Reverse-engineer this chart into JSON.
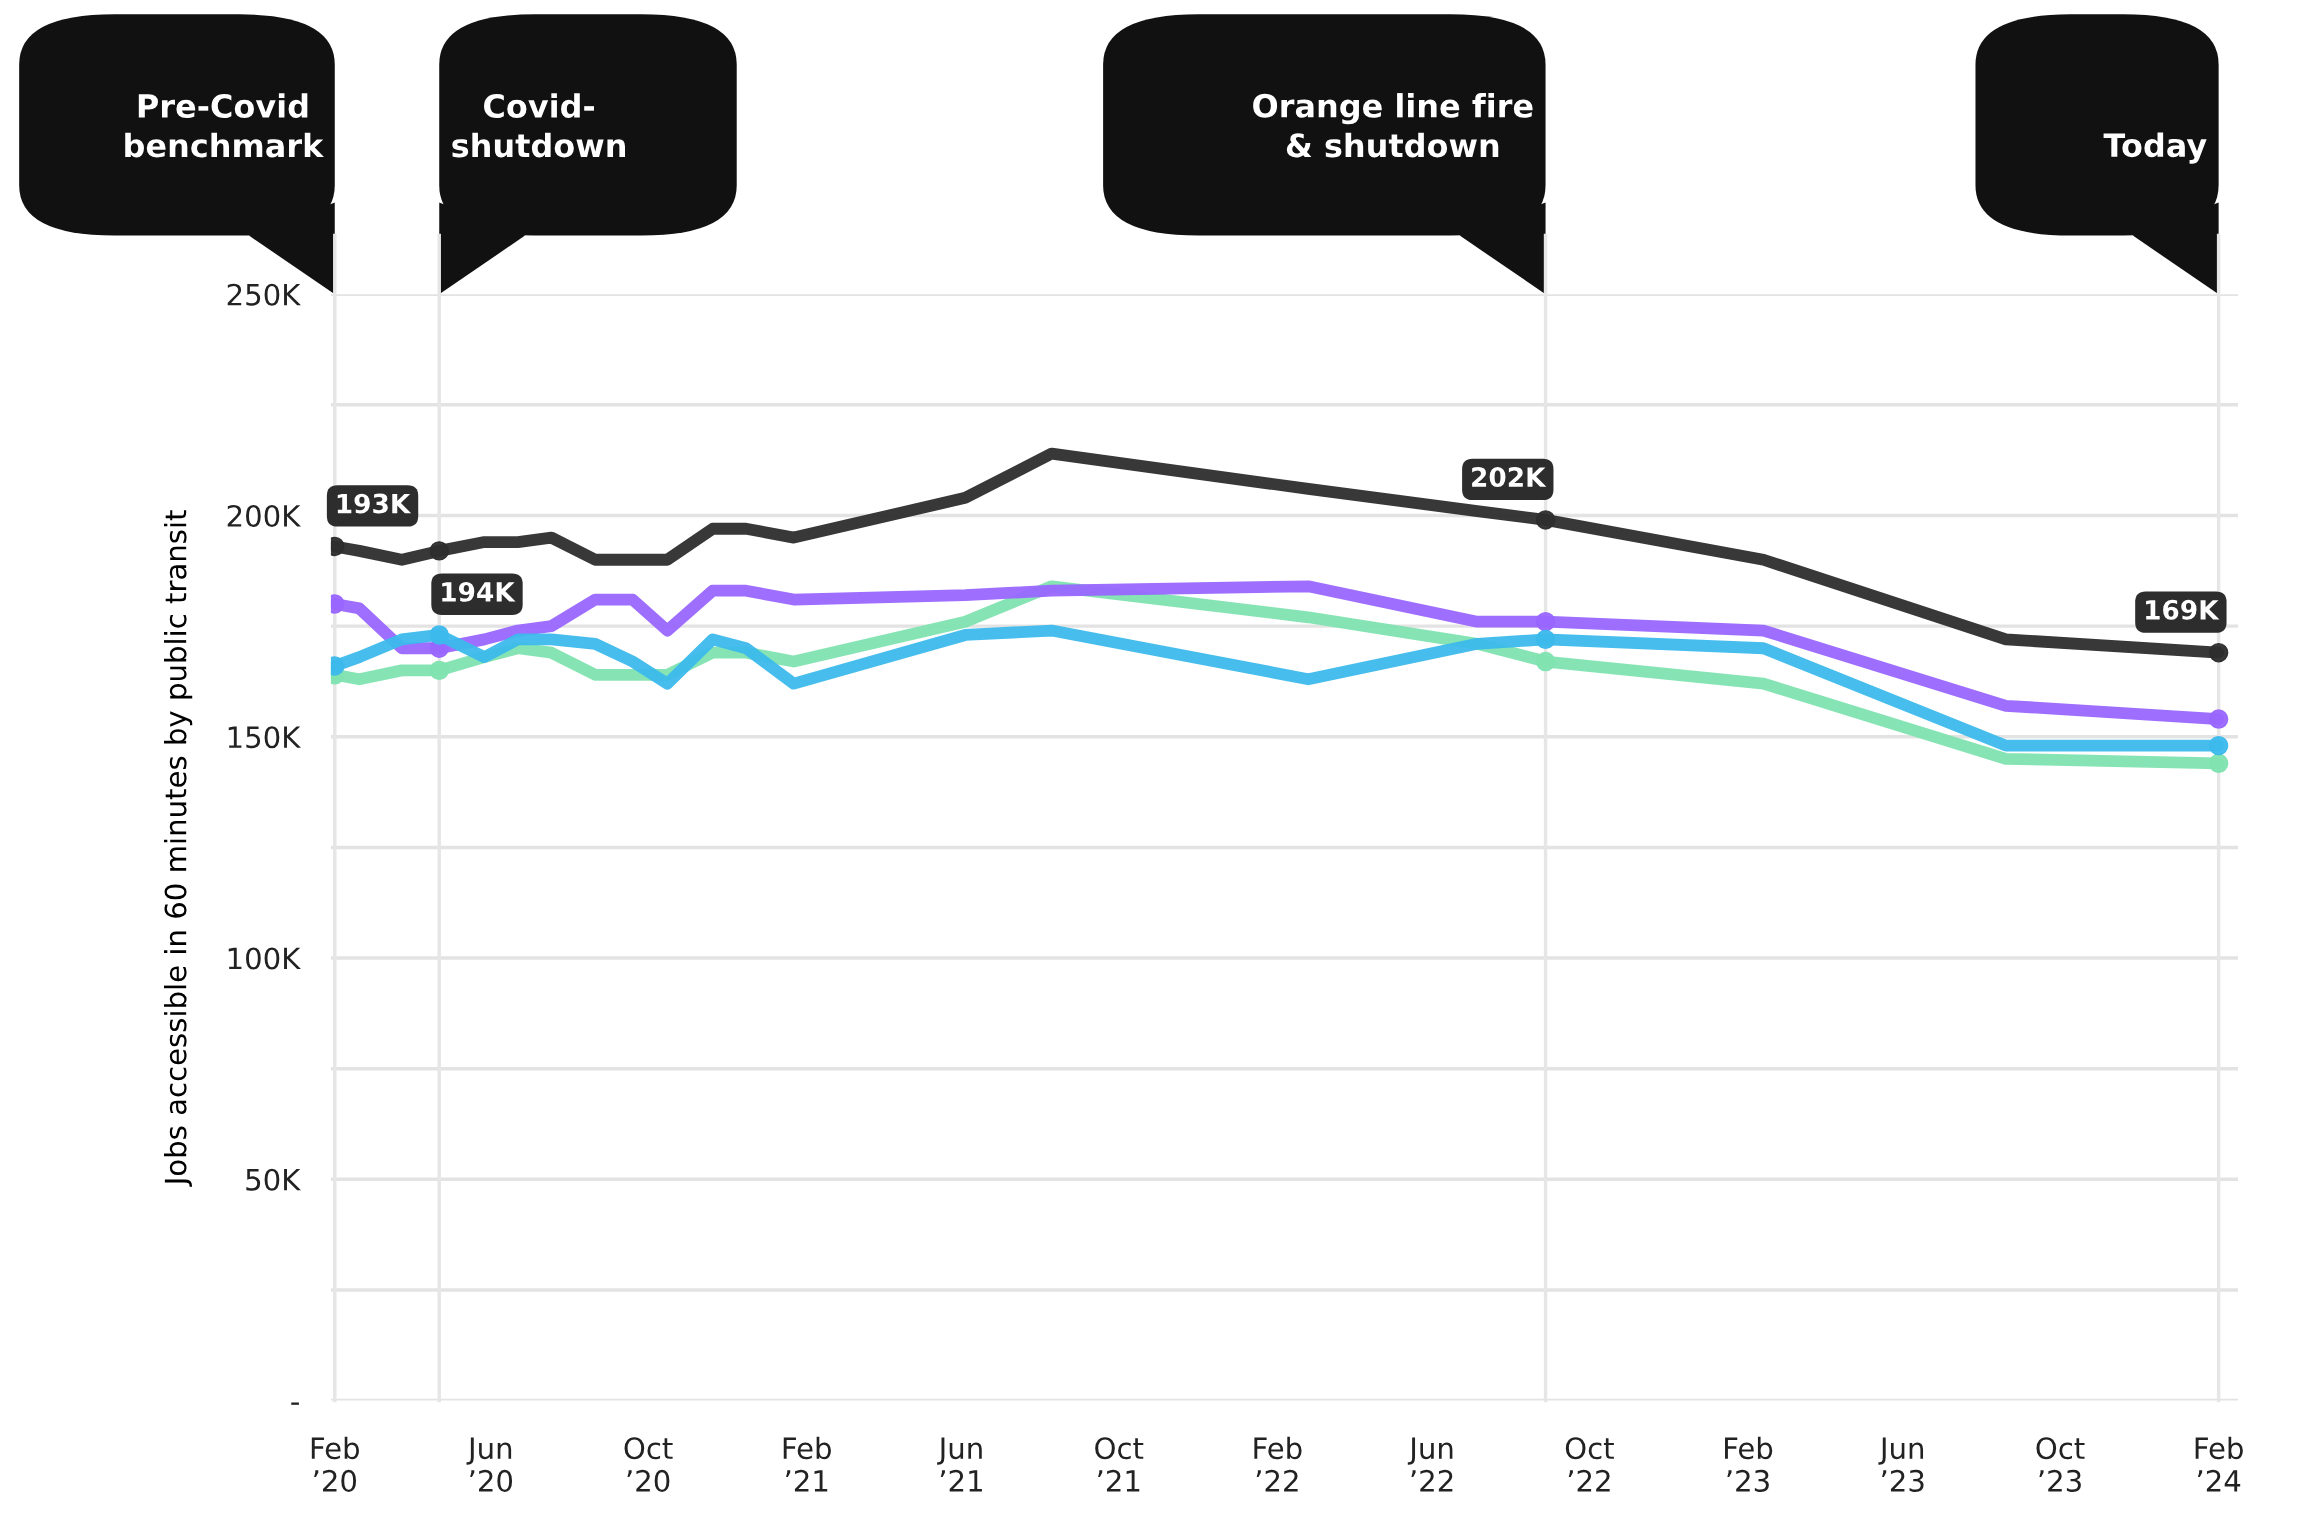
{
  "chart_data": {
    "type": "line",
    "ylabel": "Jobs accessible in 60 minutes by public transit",
    "x": [
      "2020-02-01",
      "2020-02-20",
      "2020-03-24",
      "2020-04-22",
      "2020-05-27",
      "2020-06-22",
      "2020-07-18",
      "2020-08-21",
      "2020-09-19",
      "2020-10-16",
      "2020-11-20",
      "2020-12-16",
      "2021-01-22",
      "2021-06-04",
      "2021-08-10",
      "2022-02-25",
      "2022-07-06",
      "2022-08-28",
      "2023-02-13",
      "2023-08-20",
      "2024-02-01"
    ],
    "series": [
      {
        "color": "#2d2d2d",
        "values": [
          193,
          192,
          190,
          192,
          194,
          194,
          195,
          190,
          190,
          190,
          197,
          197,
          195,
          204,
          214,
          206,
          201,
          199,
          190,
          172,
          169
        ]
      },
      {
        "color": "#9966ff",
        "values": [
          180,
          179,
          170,
          170,
          172,
          174,
          175,
          181,
          181,
          174,
          183,
          183,
          181,
          182,
          183,
          184,
          176,
          176,
          174,
          157,
          154
        ]
      },
      {
        "color": "#3cb9ec",
        "values": [
          166,
          168,
          172,
          173,
          168,
          172,
          172,
          171,
          167,
          162,
          172,
          170,
          162,
          173,
          174,
          163,
          171,
          172,
          170,
          148,
          148
        ]
      },
      {
        "color": "#7fe3b0",
        "values": [
          164,
          163,
          165,
          165,
          168,
          170,
          169,
          164,
          164,
          164,
          169,
          169,
          167,
          176,
          184,
          177,
          171,
          167,
          162,
          145,
          144
        ]
      }
    ],
    "xlim": [
      "2020-01-29",
      "2024-02-16"
    ],
    "xticks": [
      {
        "value": "2020-02-01",
        "label": "Feb\n’20"
      },
      {
        "value": "2020-06-01",
        "label": "Jun\n’20"
      },
      {
        "value": "2020-10-01",
        "label": "Oct\n’20"
      },
      {
        "value": "2021-02-01",
        "label": "Feb\n’21"
      },
      {
        "value": "2021-06-01",
        "label": "Jun\n’21"
      },
      {
        "value": "2021-10-01",
        "label": "Oct\n’21"
      },
      {
        "value": "2022-02-01",
        "label": "Feb\n’22"
      },
      {
        "value": "2022-06-01",
        "label": "Jun\n’22"
      },
      {
        "value": "2022-10-01",
        "label": "Oct\n’22"
      },
      {
        "value": "2023-02-01",
        "label": "Feb\n’23"
      },
      {
        "value": "2023-06-01",
        "label": "Jun\n’23"
      },
      {
        "value": "2023-10-01",
        "label": "Oct\n’23"
      },
      {
        "value": "2024-02-01",
        "label": "Feb\n’24"
      }
    ],
    "ylim": [
      0,
      250
    ],
    "yticks": [
      {
        "value": 0,
        "label": "-"
      },
      {
        "value": 25,
        "label": null
      },
      {
        "value": 50,
        "label": "50K"
      },
      {
        "value": 75,
        "label": null
      },
      {
        "value": 100,
        "label": "100K"
      },
      {
        "value": 125,
        "label": null
      },
      {
        "value": 150,
        "label": "150K"
      },
      {
        "value": 175,
        "label": null
      },
      {
        "value": 200,
        "label": "200K"
      },
      {
        "value": 225,
        "label": null
      },
      {
        "value": 250,
        "label": "250K"
      }
    ],
    "grid": "y",
    "line_style": "solid",
    "ref_lines": [
      {
        "axis": "x",
        "value": "2020-02-01",
        "label": "Pre-Covid\nbenchmark",
        "color": "#e6e6e6"
      },
      {
        "axis": "x",
        "value": "2020-04-22",
        "label": "Covid-\nshutdown",
        "color": "#e6e6e6"
      },
      {
        "axis": "x",
        "value": "2022-08-28",
        "label": "Orange line fire\n& shutdown",
        "color": "#e6e6e6"
      },
      {
        "axis": "x",
        "value": "2024-02-01",
        "label": "Today",
        "color": "#e6e6e6"
      }
    ],
    "annotations": [
      {
        "text": "193K",
        "x": "2020-02-01",
        "y": 193
      },
      {
        "text": "194K",
        "x": "2020-04-22",
        "y": 192
      },
      {
        "text": "202K",
        "x": "2022-08-28",
        "y": 199
      },
      {
        "text": "169K",
        "x": "2024-02-01",
        "y": 169
      }
    ]
  }
}
